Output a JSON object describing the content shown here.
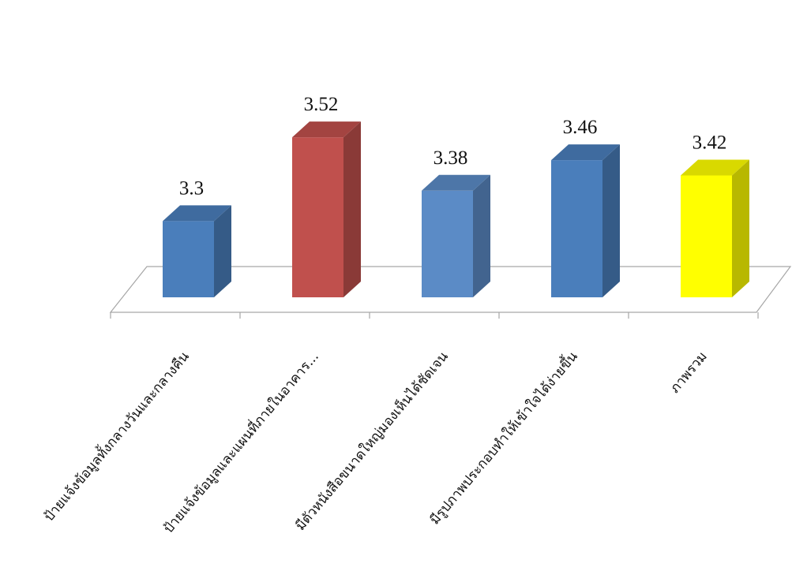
{
  "chart_data": {
    "type": "bar",
    "style": "3d-column",
    "categories": [
      "ป้ายแจ้งข้อมูลทั้งกลางวันและกลางคืน",
      "ป้ายแจ้งข้อมูลและแผนที่ภายในอาคาร...",
      "มีตัวหนังสือขนาดใหญ่มองเห็นได้ชัดเจน",
      "มีรูปภาพประกอบทำให้เข้าใจได้ง่ายขึ้น",
      "ภาพรวม"
    ],
    "values": [
      3.3,
      3.52,
      3.38,
      3.46,
      3.42
    ],
    "data_labels": [
      "3.3",
      "3.52",
      "3.38",
      "3.46",
      "3.42"
    ],
    "colors": [
      "#4a7ebb",
      "#c0504d",
      "#5b8bc6",
      "#4a7ebb",
      "#ffff00"
    ],
    "ylim": [
      3.1,
      3.6
    ],
    "grid": false,
    "legend": "none"
  }
}
